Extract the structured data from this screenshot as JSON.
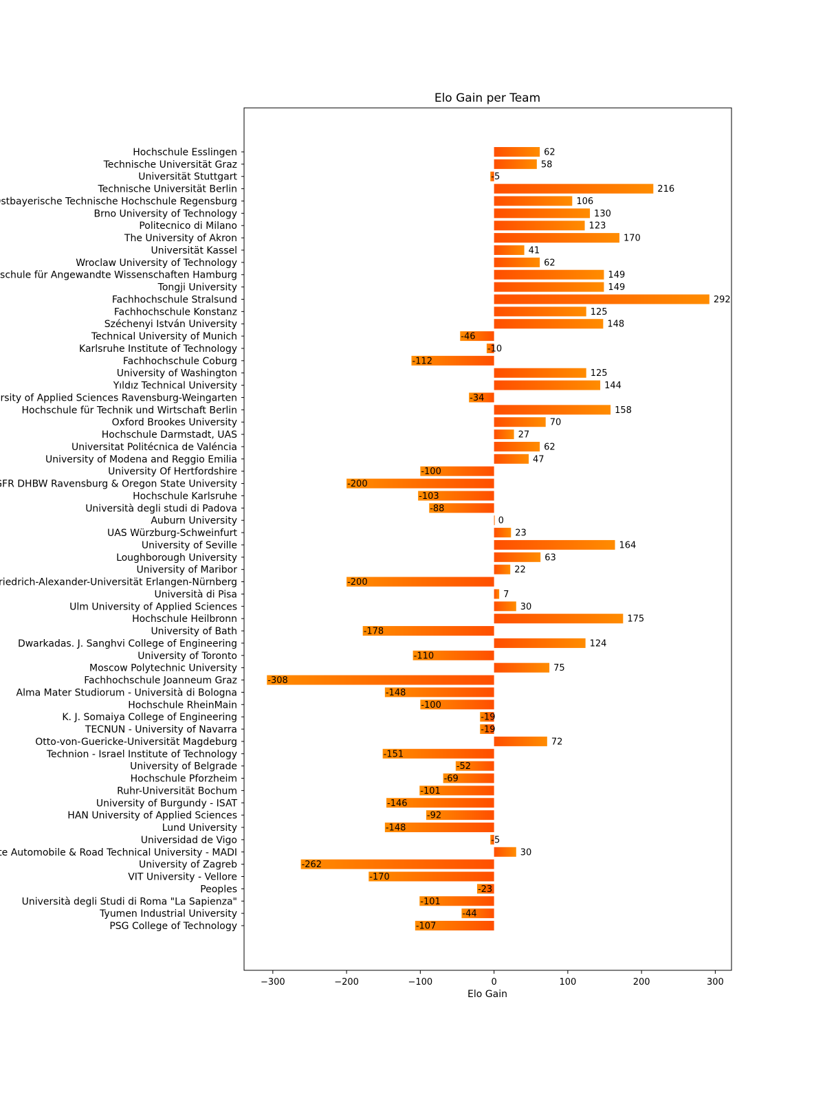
{
  "chart_data": {
    "type": "bar",
    "orientation": "horizontal",
    "title": "Elo Gain per Team",
    "xlabel": "Elo Gain",
    "ylabel": "",
    "xlim": [
      -339,
      322
    ],
    "xticks": [
      -300,
      -200,
      -100,
      0,
      100,
      200,
      300
    ],
    "xtick_labels": [
      "−300",
      "−200",
      "−100",
      "0",
      "100",
      "200",
      "300"
    ],
    "grid": false,
    "colors": {
      "gradient_start": "#ff4f00",
      "gradient_end": "#ff8c00",
      "frame": "#000000"
    },
    "categories": [
      "Hochschule Esslingen",
      "Technische Universität Graz",
      "Universität Stuttgart",
      "Technische Universität Berlin",
      "Ostbayerische Technische Hochschule Regensburg",
      "Brno University of Technology",
      "Politecnico di Milano",
      "The University of Akron",
      "Universität Kassel",
      "Wroclaw University of Technology",
      "hschule für Angewandte Wissenschaften Hamburg",
      "Tongji University",
      "Fachhochschule Stralsund",
      "Fachhochschule Konstanz",
      "Széchenyi István University",
      "Technical University of Munich",
      "Karlsruhe Institute of Technology",
      "Fachhochschule Coburg",
      "University of Washington",
      "Yıldız Technical University",
      "ersity of Applied Sciences Ravensburg-Weingarten",
      "Hochschule für Technik und Wirtschaft Berlin",
      "Oxford Brookes University",
      "Hochschule Darmstadt, UAS",
      "Universitat Politécnica de Valéncia",
      "University of Modena and Reggio Emilia",
      "University Of Hertfordshire",
      "GFR DHBW Ravensburg & Oregon State University",
      "Hochschule Karlsruhe",
      "Università degli studi di Padova",
      "Auburn University",
      "UAS Würzburg-Schweinfurt",
      "University of Seville",
      "Loughborough University",
      "University of Maribor",
      "Friedrich-Alexander-Universität Erlangen-Nürnberg",
      "Università di Pisa",
      "Ulm University of Applied Sciences",
      "Hochschule Heilbronn",
      "University of Bath",
      "Dwarkadas. J. Sanghvi College of Engineering",
      "University of Toronto",
      "Moscow Polytechnic University",
      "Fachhochschule Joanneum Graz",
      "Alma Mater Studiorum - Università di Bologna",
      "Hochschule RheinMain",
      "K. J. Somaiya College of Engineering",
      "TECNUN - University of Navarra",
      "Otto-von-Guericke-Universität Magdeburg",
      "Technion - Israel Institute of Technology",
      "University of Belgrade",
      "Hochschule Pforzheim",
      "Ruhr-Universität Bochum",
      "University of Burgundy - ISAT",
      "HAN University of Applied Sciences",
      "Lund University",
      "Universidad de Vigo",
      "ate Automobile & Road Technical University - MADI",
      "University of Zagreb",
      "VIT University - Vellore",
      "Peoples",
      "Università degli Studi di Roma \"La Sapienza\"",
      "Tyumen Industrial University",
      "PSG College of Technology"
    ],
    "values": [
      62,
      58,
      -5,
      216,
      106,
      130,
      123,
      170,
      41,
      62,
      149,
      149,
      292,
      125,
      148,
      -46,
      -10,
      -112,
      125,
      144,
      -34,
      158,
      70,
      27,
      62,
      47,
      -100,
      -200,
      -103,
      -88,
      0,
      23,
      164,
      63,
      22,
      -200,
      7,
      30,
      175,
      -178,
      124,
      -110,
      75,
      -308,
      -148,
      -100,
      -19,
      -19,
      72,
      -151,
      -52,
      -69,
      -101,
      -146,
      -92,
      -148,
      -5,
      30,
      -262,
      -170,
      -23,
      -101,
      -44,
      -107
    ],
    "value_labels": [
      "62",
      "58",
      "-5",
      "216",
      "106",
      "130",
      "123",
      "170",
      "41",
      "62",
      "149",
      "149",
      "292",
      "125",
      "148",
      "-46",
      "-10",
      "-112",
      "125",
      "144",
      "-34",
      "158",
      "70",
      "27",
      "62",
      "47",
      "-100",
      "-200",
      "-103",
      "-88",
      "0",
      "23",
      "164",
      "63",
      "22",
      "-200",
      "7",
      "30",
      "175",
      "-178",
      "124",
      "-110",
      "75",
      "-308",
      "-148",
      "-100",
      "-19",
      "-19",
      "72",
      "-151",
      "-52",
      "-69",
      "-101",
      "-146",
      "-92",
      "-148",
      "-5",
      "30",
      "-262",
      "-170",
      "-23",
      "-101",
      "-44",
      "-107"
    ]
  }
}
